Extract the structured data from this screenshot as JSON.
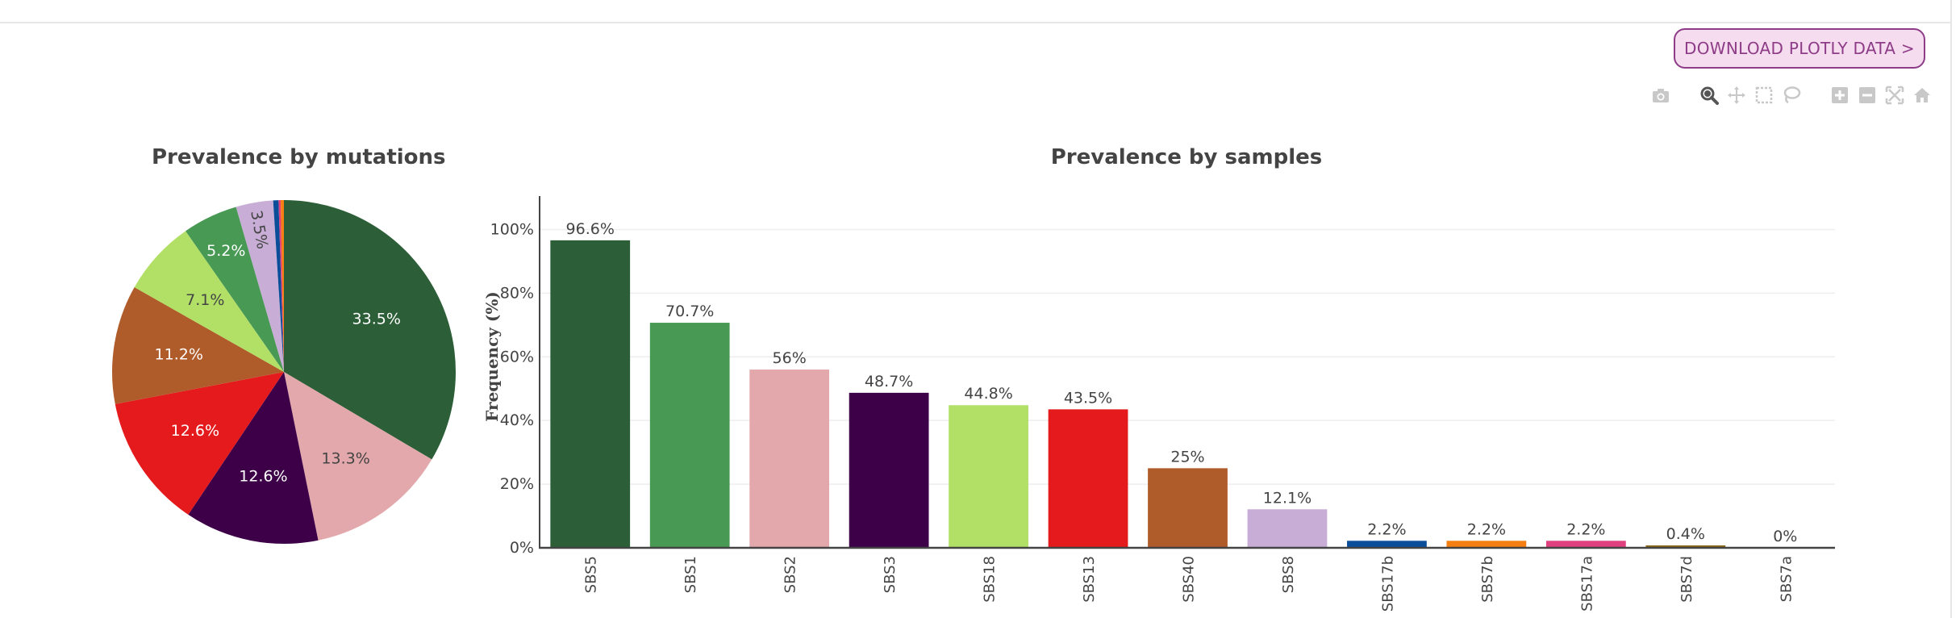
{
  "toolbar": {
    "download_label": "DOWNLOAD PLOTLY DATA >",
    "modebar": [
      {
        "name": "camera-icon"
      },
      {
        "name": "zoom-icon"
      },
      {
        "name": "pan-icon"
      },
      {
        "name": "box-select-icon"
      },
      {
        "name": "lasso-icon"
      },
      {
        "name": "zoom-in-icon"
      },
      {
        "name": "zoom-out-icon"
      },
      {
        "name": "autoscale-icon"
      },
      {
        "name": "reset-axes-icon"
      }
    ]
  },
  "colors": {
    "SBS5": "#2c5e37",
    "SBS1": "#489954",
    "SBS2": "#e2a8ab",
    "SBS3": "#3d0048",
    "SBS18": "#b2e067",
    "SBS13": "#e41a1c",
    "SBS40": "#b05b2a",
    "SBS8": "#c8aed6",
    "SBS17b": "#0a4d99",
    "SBS7b": "#f57f12",
    "SBS17a": "#e0407e",
    "SBS7d": "#8b6a1b",
    "SBS7a": "#ff9933"
  },
  "chart_data": [
    {
      "type": "pie",
      "title": "Prevalence by mutations",
      "labels": [
        "SBS5",
        "SBS2",
        "SBS3",
        "SBS13",
        "SBS40",
        "SBS18",
        "SBS1",
        "SBS8",
        "SBS17b",
        "SBS17a",
        "SBS7b"
      ],
      "values": [
        33.5,
        13.3,
        12.6,
        12.6,
        11.2,
        7.1,
        5.2,
        3.5,
        0.5,
        0.2,
        0.3
      ],
      "text_labels": [
        "33.5%",
        "13.3%",
        "12.6%",
        "12.6%",
        "11.2%",
        "7.1%",
        "5.2%",
        "3.5%",
        "",
        "",
        ""
      ],
      "direction": "clockwise",
      "start": "12 o'clock"
    },
    {
      "type": "bar",
      "title": "Prevalence by samples",
      "ylabel": "Frequency (%)",
      "xlabel": "",
      "categories": [
        "SBS5",
        "SBS1",
        "SBS2",
        "SBS3",
        "SBS18",
        "SBS13",
        "SBS40",
        "SBS8",
        "SBS17b",
        "SBS7b",
        "SBS17a",
        "SBS7d",
        "SBS7a"
      ],
      "values": [
        96.6,
        70.7,
        56,
        48.7,
        44.8,
        43.5,
        25,
        12.1,
        2.2,
        2.2,
        2.2,
        0.4,
        0
      ],
      "value_labels": [
        "96.6%",
        "70.7%",
        "56%",
        "48.7%",
        "44.8%",
        "43.5%",
        "25%",
        "12.1%",
        "2.2%",
        "2.2%",
        "2.2%",
        "0.4%",
        "0%"
      ],
      "yticks": [
        "0%",
        "20%",
        "40%",
        "60%",
        "80%",
        "100%"
      ],
      "ylim": [
        0,
        110
      ],
      "grid": true,
      "legend": "none"
    }
  ]
}
